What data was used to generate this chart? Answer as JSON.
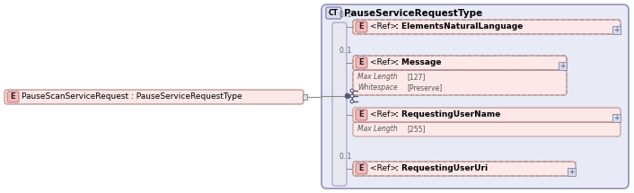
{
  "bg_color": "#ffffff",
  "outer_fill": "#e8eaf6",
  "outer_stroke": "#9090bb",
  "bar_fill": "#e0e0ec",
  "bar_stroke": "#a0a0c0",
  "elem_fill": "#fce8e8",
  "elem_stroke_solid": "#c09898",
  "elem_stroke_dashed": "#b09898",
  "e_box_fill": "#f4b8b8",
  "e_box_stroke": "#c08080",
  "detail_fill": "#fce8e8",
  "detail_stroke": "#c09898",
  "plus_fill": "#d8daea",
  "plus_stroke": "#9090aa",
  "conn_color": "#888888",
  "seq_color": "#555577",
  "card_color": "#666666",
  "text_color": "#000000",
  "detail_text_color": "#555555",
  "ct_fill": "#d8ddf0",
  "ct_stroke": "#8888bb",
  "title": "PauseServiceRequestType",
  "ct_label": "CT",
  "left_label": "E",
  "left_text": "PauseScanServiceRequest : PauseServiceRequestType",
  "elements": [
    {
      "label": "E",
      "ref": "<Ref>",
      "name": ": ElementsNaturalLanguage",
      "cardinality": "0..1",
      "dashed": true,
      "details": []
    },
    {
      "label": "E",
      "ref": "<Ref>",
      "name": ": Message",
      "cardinality": "0..1",
      "dashed": true,
      "details": [
        "Max Length",
        "[127]",
        "Whitespace",
        "[Preserve]"
      ]
    },
    {
      "label": "E",
      "ref": "<Ref>",
      "name": ": RequestingUserName",
      "cardinality": "",
      "dashed": false,
      "details": [
        "Max Length",
        "[255]"
      ]
    },
    {
      "label": "E",
      "ref": "<Ref>",
      "name": ": RequestingUserUri",
      "cardinality": "0..1",
      "dashed": true,
      "details": []
    }
  ]
}
